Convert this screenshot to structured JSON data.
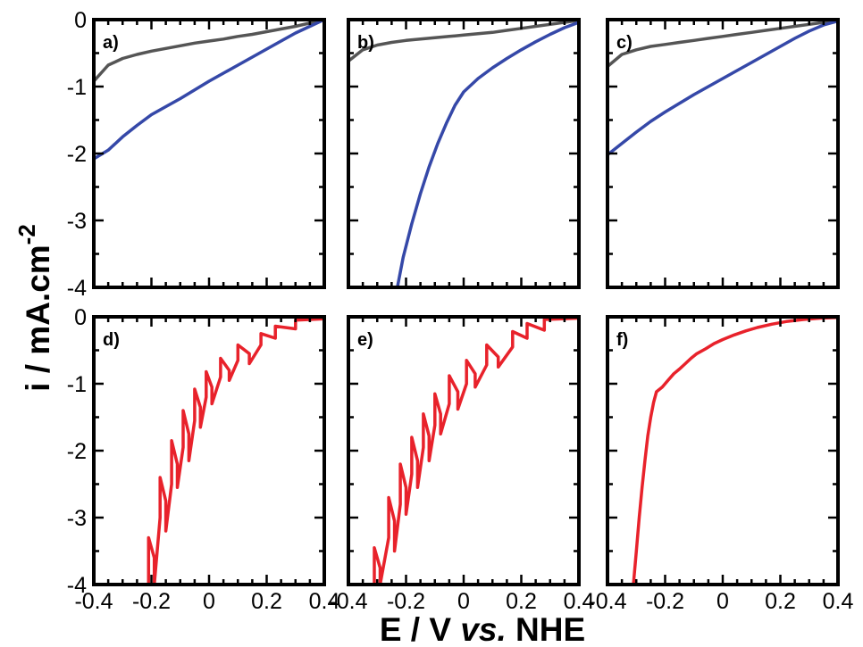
{
  "chart_data": {
    "type": "line",
    "layout": "2x3 panel grid",
    "xlabel": "E / V ",
    "xlabel_italic": "vs.",
    "xlabel_suffix": " NHE",
    "ylabel": "i / mA.cm",
    "ylabel_superscript": "-2",
    "xlim": [
      -0.4,
      0.4
    ],
    "ylim": [
      -4,
      0
    ],
    "x_ticks": [
      -0.4,
      -0.2,
      0,
      0.2,
      0.4
    ],
    "x_tick_labels": [
      "-0.4",
      "-0.2",
      "0",
      "0.2",
      "0.4"
    ],
    "y_ticks": [
      0,
      -1,
      -2,
      -3,
      -4
    ],
    "y_tick_labels": [
      "0",
      "-1",
      "-2",
      "-3",
      "-4"
    ],
    "grid": false,
    "colors": {
      "gray": "#555555",
      "blue": "#3548a8",
      "red": "#e8222b"
    },
    "panels": [
      {
        "label": "a)",
        "series": [
          {
            "color": "gray",
            "x": [
              -0.4,
              -0.35,
              -0.3,
              -0.25,
              -0.2,
              -0.15,
              -0.1,
              -0.05,
              0.0,
              0.05,
              0.1,
              0.15,
              0.2,
              0.25,
              0.3,
              0.35,
              0.4
            ],
            "y": [
              -0.92,
              -0.68,
              -0.58,
              -0.52,
              -0.47,
              -0.43,
              -0.39,
              -0.35,
              -0.32,
              -0.29,
              -0.25,
              -0.22,
              -0.18,
              -0.14,
              -0.1,
              -0.05,
              0.0
            ]
          },
          {
            "color": "blue",
            "x": [
              -0.4,
              -0.35,
              -0.3,
              -0.25,
              -0.2,
              -0.15,
              -0.1,
              -0.05,
              0.0,
              0.05,
              0.1,
              0.15,
              0.2,
              0.25,
              0.3,
              0.35,
              0.4
            ],
            "y": [
              -2.08,
              -1.95,
              -1.75,
              -1.58,
              -1.42,
              -1.3,
              -1.18,
              -1.05,
              -0.92,
              -0.8,
              -0.68,
              -0.56,
              -0.44,
              -0.32,
              -0.2,
              -0.1,
              0.0
            ]
          }
        ]
      },
      {
        "label": "b)",
        "series": [
          {
            "color": "gray",
            "x": [
              -0.4,
              -0.35,
              -0.3,
              -0.25,
              -0.2,
              -0.15,
              -0.1,
              -0.05,
              0.0,
              0.05,
              0.1,
              0.15,
              0.2,
              0.25,
              0.3,
              0.35,
              0.4
            ],
            "y": [
              -0.62,
              -0.45,
              -0.38,
              -0.34,
              -0.31,
              -0.29,
              -0.27,
              -0.25,
              -0.23,
              -0.21,
              -0.19,
              -0.16,
              -0.13,
              -0.1,
              -0.07,
              -0.04,
              -0.01
            ]
          },
          {
            "color": "blue",
            "x": [
              -0.23,
              -0.21,
              -0.18,
              -0.15,
              -0.12,
              -0.09,
              -0.06,
              -0.03,
              0.0,
              0.05,
              0.1,
              0.15,
              0.2,
              0.25,
              0.3,
              0.35,
              0.4
            ],
            "y": [
              -4.0,
              -3.55,
              -3.05,
              -2.6,
              -2.2,
              -1.85,
              -1.55,
              -1.28,
              -1.08,
              -0.88,
              -0.72,
              -0.58,
              -0.45,
              -0.33,
              -0.22,
              -0.12,
              -0.04
            ]
          }
        ]
      },
      {
        "label": "c)",
        "series": [
          {
            "color": "gray",
            "x": [
              -0.4,
              -0.35,
              -0.3,
              -0.25,
              -0.2,
              -0.15,
              -0.1,
              -0.05,
              0.0,
              0.05,
              0.1,
              0.15,
              0.2,
              0.25,
              0.3,
              0.35,
              0.4
            ],
            "y": [
              -0.7,
              -0.52,
              -0.45,
              -0.4,
              -0.37,
              -0.34,
              -0.31,
              -0.28,
              -0.25,
              -0.22,
              -0.19,
              -0.16,
              -0.13,
              -0.1,
              -0.07,
              -0.04,
              -0.01
            ]
          },
          {
            "color": "blue",
            "x": [
              -0.4,
              -0.35,
              -0.3,
              -0.25,
              -0.2,
              -0.15,
              -0.1,
              -0.05,
              0.0,
              0.05,
              0.1,
              0.15,
              0.2,
              0.25,
              0.3,
              0.35,
              0.4
            ],
            "y": [
              -2.02,
              -1.85,
              -1.68,
              -1.52,
              -1.38,
              -1.25,
              -1.12,
              -1.0,
              -0.88,
              -0.76,
              -0.64,
              -0.52,
              -0.4,
              -0.28,
              -0.17,
              -0.08,
              -0.02
            ]
          }
        ]
      },
      {
        "label": "d)",
        "series": [
          {
            "color": "red",
            "x": [
              -0.21,
              -0.21,
              -0.19,
              -0.19,
              -0.17,
              -0.17,
              -0.15,
              -0.15,
              -0.13,
              -0.13,
              -0.11,
              -0.11,
              -0.09,
              -0.09,
              -0.07,
              -0.07,
              -0.05,
              -0.05,
              -0.03,
              -0.03,
              -0.01,
              -0.01,
              0.01,
              0.01,
              0.04,
              0.04,
              0.07,
              0.07,
              0.1,
              0.1,
              0.14,
              0.14,
              0.18,
              0.18,
              0.23,
              0.23,
              0.3,
              0.3,
              0.4
            ],
            "y": [
              -4.0,
              -3.3,
              -3.6,
              -4.0,
              -3.0,
              -2.4,
              -2.75,
              -3.2,
              -2.5,
              -1.85,
              -2.2,
              -2.55,
              -1.95,
              -1.4,
              -1.75,
              -2.15,
              -1.55,
              -1.08,
              -1.35,
              -1.65,
              -1.2,
              -0.82,
              -1.05,
              -1.3,
              -0.9,
              -0.62,
              -0.8,
              -0.95,
              -0.65,
              -0.42,
              -0.55,
              -0.7,
              -0.42,
              -0.25,
              -0.32,
              -0.14,
              -0.18,
              -0.05,
              -0.03
            ]
          }
        ]
      },
      {
        "label": "e)",
        "series": [
          {
            "color": "red",
            "x": [
              -0.31,
              -0.31,
              -0.29,
              -0.29,
              -0.26,
              -0.26,
              -0.24,
              -0.24,
              -0.22,
              -0.22,
              -0.2,
              -0.2,
              -0.18,
              -0.18,
              -0.16,
              -0.16,
              -0.14,
              -0.14,
              -0.12,
              -0.12,
              -0.1,
              -0.1,
              -0.08,
              -0.08,
              -0.05,
              -0.05,
              -0.02,
              -0.02,
              0.01,
              0.01,
              0.04,
              0.04,
              0.08,
              0.08,
              0.12,
              0.12,
              0.17,
              0.17,
              0.22,
              0.22,
              0.28,
              0.28,
              0.4
            ],
            "y": [
              -4.0,
              -3.45,
              -3.75,
              -4.0,
              -3.3,
              -2.7,
              -3.05,
              -3.5,
              -2.8,
              -2.2,
              -2.55,
              -2.95,
              -2.35,
              -1.8,
              -2.15,
              -2.55,
              -1.95,
              -1.45,
              -1.78,
              -2.15,
              -1.62,
              -1.15,
              -1.45,
              -1.75,
              -1.3,
              -0.88,
              -1.12,
              -1.38,
              -1.0,
              -0.65,
              -0.85,
              -1.05,
              -0.72,
              -0.42,
              -0.6,
              -0.75,
              -0.45,
              -0.22,
              -0.32,
              -0.1,
              -0.2,
              -0.04,
              -0.02
            ]
          }
        ]
      },
      {
        "label": "f)",
        "series": [
          {
            "color": "red",
            "x": [
              -0.31,
              -0.3,
              -0.29,
              -0.28,
              -0.27,
              -0.26,
              -0.25,
              -0.24,
              -0.23,
              -0.21,
              -0.19,
              -0.17,
              -0.15,
              -0.13,
              -0.11,
              -0.09,
              -0.06,
              -0.03,
              0.0,
              0.04,
              0.08,
              0.12,
              0.17,
              0.22,
              0.28,
              0.34,
              0.4
            ],
            "y": [
              -4.0,
              -3.5,
              -3.0,
              -2.55,
              -2.15,
              -1.78,
              -1.5,
              -1.28,
              -1.12,
              -1.05,
              -0.95,
              -0.85,
              -0.78,
              -0.7,
              -0.62,
              -0.55,
              -0.48,
              -0.4,
              -0.34,
              -0.27,
              -0.21,
              -0.16,
              -0.11,
              -0.07,
              -0.04,
              -0.02,
              -0.01
            ]
          }
        ]
      }
    ]
  }
}
